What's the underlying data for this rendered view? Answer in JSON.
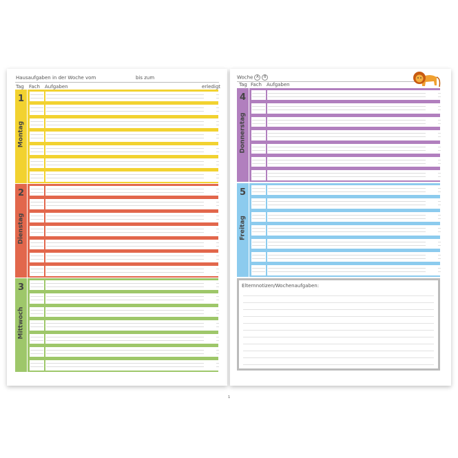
{
  "left_page": {
    "title": "Hausaufgaben in der Woche vom",
    "until": "bis zum",
    "col_tag": "Tag",
    "col_fach": "Fach",
    "col_aufgaben": "Aufgaben",
    "col_erledigt": "erledigt"
  },
  "right_page": {
    "woche": "Woche",
    "option_a": "A",
    "option_b": "B",
    "col_tag": "Tag",
    "col_fach": "Fach",
    "col_aufgaben": "Aufgaben",
    "mascot_icon": "lion-icon"
  },
  "days": [
    {
      "number": "1",
      "name": "Montag",
      "color": "#f2d230"
    },
    {
      "number": "2",
      "name": "Dienstag",
      "color": "#e2674c"
    },
    {
      "number": "3",
      "name": "Mittwoch",
      "color": "#9ec76a"
    },
    {
      "number": "4",
      "name": "Donnerstag",
      "color": "#b17fbe"
    },
    {
      "number": "5",
      "name": "Freitag",
      "color": "#8ccbee"
    }
  ],
  "notes": {
    "label": "Elternnotizen/Wochenaufgaben:"
  },
  "page_number": "1"
}
